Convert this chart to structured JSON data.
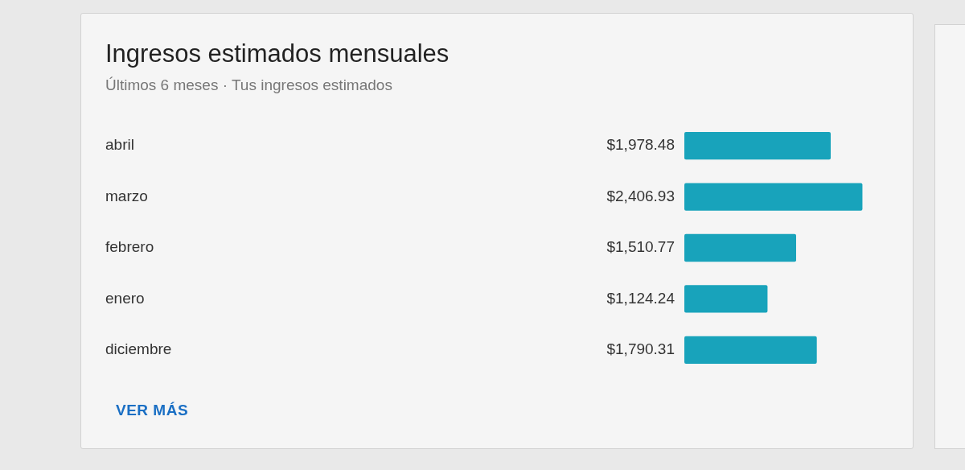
{
  "chart_data": {
    "type": "bar",
    "orientation": "horizontal",
    "title": "Ingresos estimados mensuales",
    "subtitle": "Últimos 6 meses · Tus ingresos estimados",
    "categories": [
      "abril",
      "marzo",
      "febrero",
      "enero",
      "diciembre"
    ],
    "values": [
      1978.48,
      2406.93,
      1510.77,
      1124.24,
      1790.31
    ],
    "value_labels": [
      "$1,978.48",
      "$2,406.93",
      "$1,510.77",
      "$1,124.24",
      "$1,790.31"
    ],
    "color": "#18a3bb",
    "grid": false,
    "legend": false,
    "tick_labels": "y",
    "annotations": [
      "VER MÁS"
    ]
  }
}
